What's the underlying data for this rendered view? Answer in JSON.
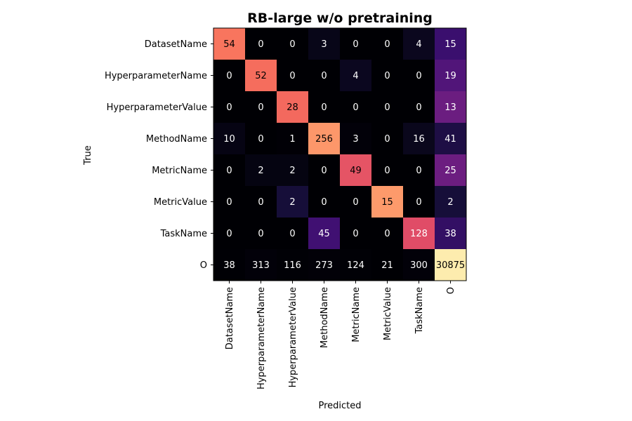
{
  "chart_data": {
    "type": "heatmap",
    "title": "RB-large w/o pretraining",
    "xlabel": "Predicted",
    "ylabel": "True",
    "x_categories": [
      "DatasetName",
      "HyperparameterName",
      "HyperparameterValue",
      "MethodName",
      "MetricName",
      "MetricValue",
      "TaskName",
      "O"
    ],
    "y_categories": [
      "DatasetName",
      "HyperparameterName",
      "HyperparameterValue",
      "MethodName",
      "MetricName",
      "MetricValue",
      "TaskName",
      "O"
    ],
    "values": [
      [
        54,
        0,
        0,
        3,
        0,
        0,
        4,
        15
      ],
      [
        0,
        52,
        0,
        0,
        4,
        0,
        0,
        19
      ],
      [
        0,
        0,
        28,
        0,
        0,
        0,
        0,
        13
      ],
      [
        10,
        0,
        1,
        256,
        3,
        0,
        16,
        41
      ],
      [
        0,
        2,
        2,
        0,
        49,
        0,
        0,
        25
      ],
      [
        0,
        0,
        2,
        0,
        0,
        15,
        0,
        2
      ],
      [
        0,
        0,
        0,
        45,
        0,
        0,
        128,
        38
      ],
      [
        38,
        313,
        116,
        273,
        124,
        21,
        300,
        30875
      ]
    ],
    "colormap": "magma",
    "grid": false
  }
}
